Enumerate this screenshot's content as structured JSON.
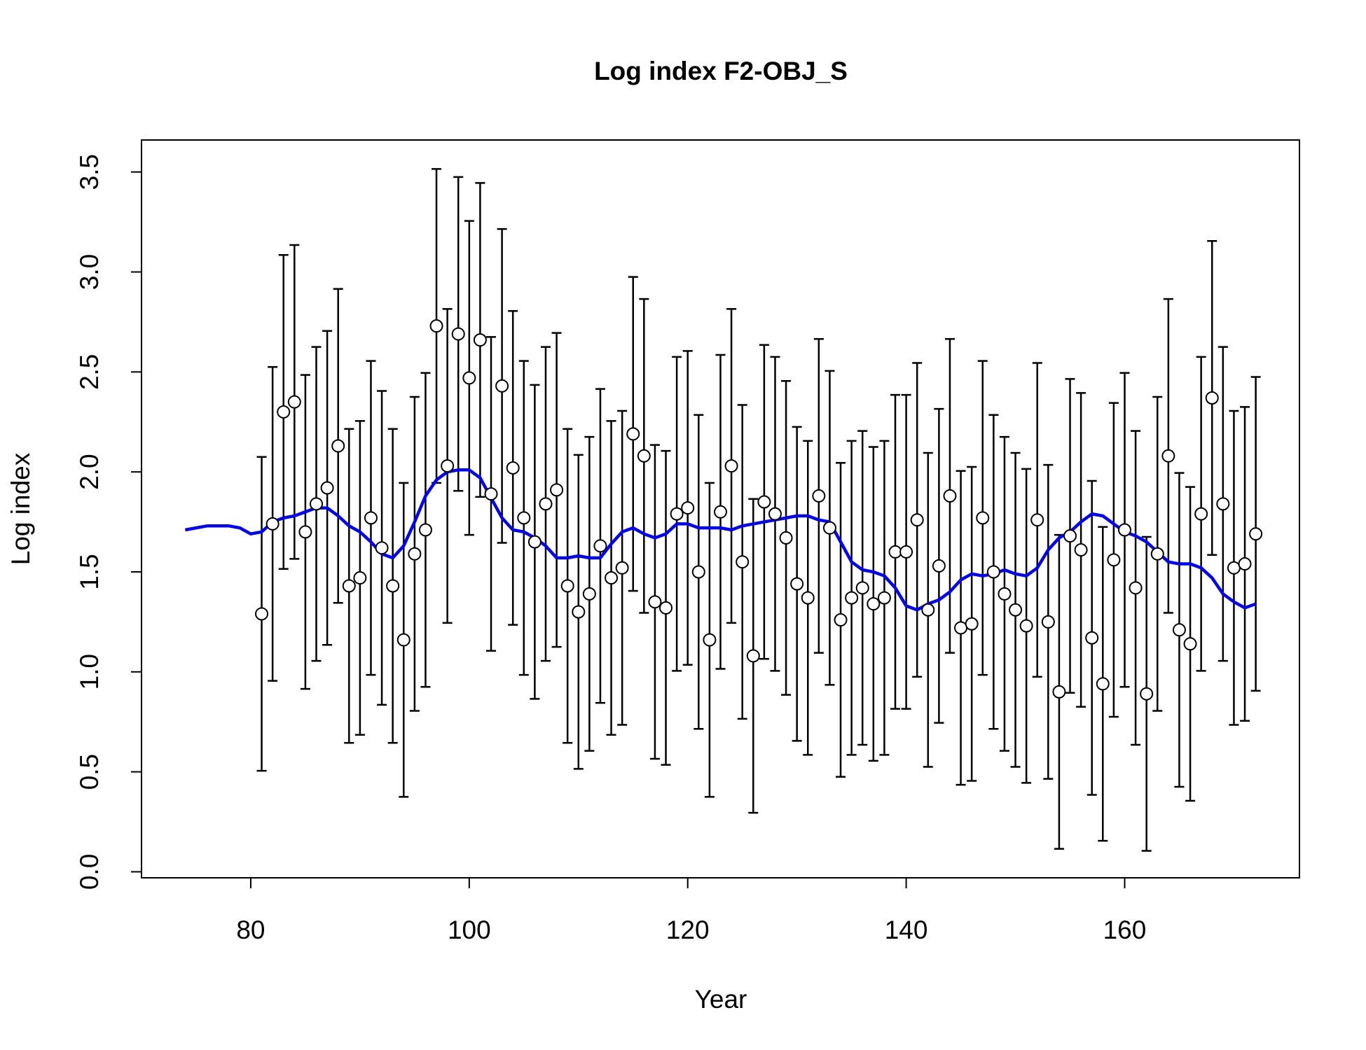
{
  "chart_data": {
    "type": "scatter",
    "title": "Log index F2-OBJ_S",
    "xlabel": "Year",
    "ylabel": "Log index",
    "xlim": [
      70,
      176
    ],
    "ylim": [
      -0.03,
      3.66
    ],
    "xticks": [
      80,
      100,
      120,
      140,
      160
    ],
    "yticks": [
      {
        "value": 0,
        "label": "0.0"
      },
      0.5,
      {
        "value": 1,
        "label": "1.0"
      },
      1.5,
      {
        "value": 2,
        "label": "2.0"
      },
      2.5,
      {
        "value": 3,
        "label": "3.0"
      },
      3.5
    ],
    "point_color": "#000000",
    "x": [
      81,
      82,
      83,
      84,
      85,
      86,
      87,
      88,
      89,
      90,
      91,
      92,
      93,
      94,
      95,
      96,
      97,
      98,
      99,
      100,
      101,
      102,
      103,
      104,
      105,
      106,
      107,
      108,
      109,
      110,
      111,
      112,
      113,
      114,
      115,
      116,
      117,
      118,
      119,
      120,
      121,
      122,
      123,
      124,
      125,
      126,
      127,
      128,
      129,
      130,
      131,
      132,
      133,
      134,
      135,
      136,
      137,
      138,
      139,
      140,
      141,
      142,
      143,
      144,
      145,
      146,
      147,
      148,
      149,
      150,
      151,
      152,
      153,
      154,
      155,
      156,
      157,
      158,
      159,
      160,
      161,
      162,
      163,
      164,
      165,
      166,
      167,
      168,
      169,
      170,
      171,
      172
    ],
    "values": [
      1.29,
      1.74,
      2.3,
      2.35,
      1.7,
      1.84,
      1.92,
      2.13,
      1.43,
      1.47,
      1.77,
      1.62,
      1.43,
      1.16,
      1.59,
      1.71,
      2.73,
      2.03,
      2.69,
      2.47,
      2.66,
      1.89,
      2.43,
      2.02,
      1.77,
      1.65,
      1.84,
      1.91,
      1.43,
      1.3,
      1.39,
      1.63,
      1.47,
      1.52,
      2.19,
      2.08,
      1.35,
      1.32,
      1.79,
      1.82,
      1.5,
      1.16,
      1.8,
      2.03,
      1.55,
      1.08,
      1.85,
      1.79,
      1.67,
      1.44,
      1.37,
      1.88,
      1.72,
      1.26,
      1.37,
      1.42,
      1.34,
      1.37,
      1.6,
      1.6,
      1.76,
      1.31,
      1.53,
      1.88,
      1.22,
      1.24,
      1.77,
      1.5,
      1.39,
      1.31,
      1.23,
      1.76,
      1.25,
      0.9,
      1.68,
      1.61,
      1.17,
      0.94,
      1.56,
      1.71,
      1.42,
      0.89,
      1.59,
      2.08,
      1.21,
      1.14,
      1.79,
      2.37,
      1.84,
      1.52,
      1.54,
      1.69
    ],
    "errors": [
      0.785,
      0.785,
      0.785,
      0.785,
      0.785,
      0.785,
      0.785,
      0.785,
      0.785,
      0.785,
      0.785,
      0.785,
      0.785,
      0.785,
      0.785,
      0.785,
      0.785,
      0.785,
      0.785,
      0.785,
      0.785,
      0.785,
      0.785,
      0.785,
      0.785,
      0.785,
      0.785,
      0.785,
      0.785,
      0.785,
      0.785,
      0.785,
      0.785,
      0.785,
      0.785,
      0.785,
      0.785,
      0.785,
      0.785,
      0.785,
      0.785,
      0.785,
      0.785,
      0.785,
      0.785,
      0.785,
      0.785,
      0.785,
      0.785,
      0.785,
      0.785,
      0.785,
      0.785,
      0.785,
      0.785,
      0.785,
      0.785,
      0.785,
      0.785,
      0.785,
      0.785,
      0.785,
      0.785,
      0.785,
      0.785,
      0.785,
      0.785,
      0.785,
      0.785,
      0.785,
      0.785,
      0.785,
      0.785,
      0.785,
      0.785,
      0.785,
      0.785,
      0.785,
      0.785,
      0.785,
      0.785,
      0.785,
      0.785,
      0.785,
      0.785,
      0.785,
      0.785,
      0.785,
      0.785,
      0.785,
      0.785,
      0.785
    ],
    "line": {
      "color": "#0000ff",
      "x": [
        74,
        75,
        76,
        77,
        78,
        79,
        80,
        81,
        82,
        83,
        84,
        85,
        86,
        87,
        88,
        89,
        90,
        91,
        92,
        93,
        94,
        95,
        96,
        97,
        98,
        99,
        100,
        101,
        102,
        103,
        104,
        105,
        106,
        107,
        108,
        109,
        110,
        111,
        112,
        113,
        114,
        115,
        116,
        117,
        118,
        119,
        120,
        121,
        122,
        123,
        124,
        125,
        126,
        127,
        128,
        129,
        130,
        131,
        132,
        133,
        134,
        135,
        136,
        137,
        138,
        139,
        140,
        141,
        142,
        143,
        144,
        145,
        146,
        147,
        148,
        149,
        150,
        151,
        152,
        153,
        154,
        155,
        156,
        157,
        158,
        159,
        160,
        161,
        162,
        163,
        164,
        165,
        166,
        167,
        168,
        169,
        170,
        171,
        172
      ],
      "values": [
        1.71,
        1.72,
        1.73,
        1.73,
        1.73,
        1.72,
        1.69,
        1.7,
        1.75,
        1.77,
        1.78,
        1.8,
        1.82,
        1.82,
        1.78,
        1.73,
        1.7,
        1.65,
        1.59,
        1.57,
        1.63,
        1.75,
        1.88,
        1.96,
        2.0,
        2.01,
        2.01,
        1.97,
        1.87,
        1.77,
        1.71,
        1.7,
        1.67,
        1.63,
        1.57,
        1.57,
        1.58,
        1.57,
        1.57,
        1.64,
        1.7,
        1.72,
        1.69,
        1.67,
        1.69,
        1.74,
        1.74,
        1.72,
        1.72,
        1.72,
        1.71,
        1.73,
        1.74,
        1.75,
        1.76,
        1.77,
        1.78,
        1.78,
        1.76,
        1.75,
        1.65,
        1.55,
        1.51,
        1.5,
        1.48,
        1.42,
        1.33,
        1.31,
        1.34,
        1.36,
        1.4,
        1.46,
        1.49,
        1.48,
        1.49,
        1.51,
        1.49,
        1.48,
        1.52,
        1.61,
        1.67,
        1.7,
        1.75,
        1.79,
        1.78,
        1.74,
        1.7,
        1.68,
        1.65,
        1.6,
        1.55,
        1.54,
        1.54,
        1.52,
        1.47,
        1.39,
        1.35,
        1.32,
        1.34
      ]
    }
  }
}
